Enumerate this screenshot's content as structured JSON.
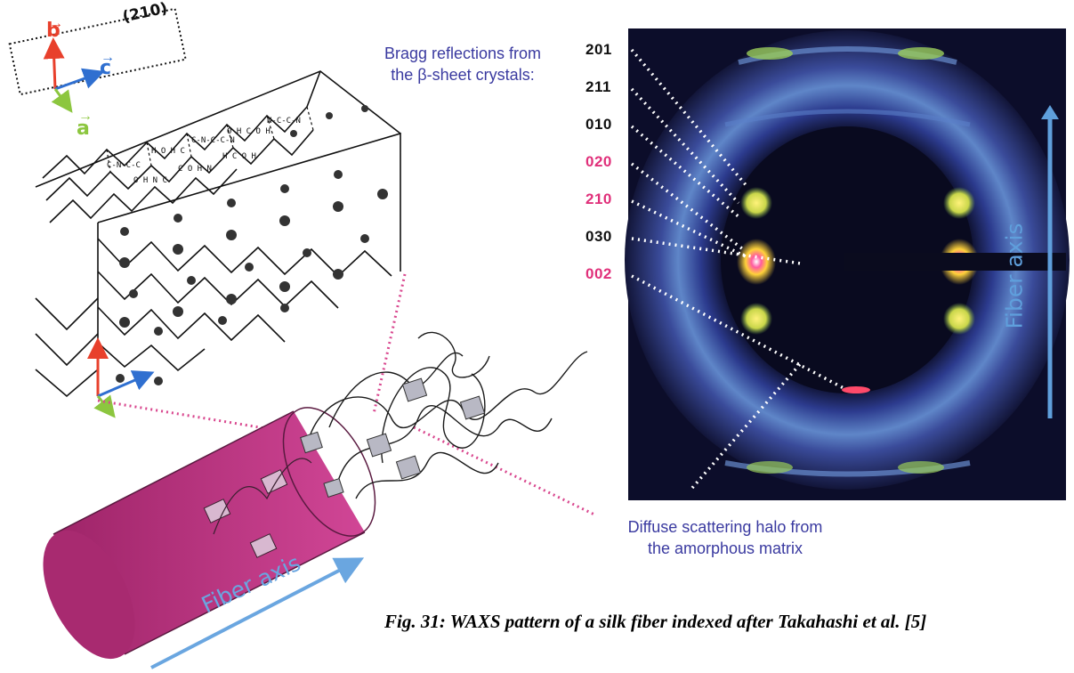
{
  "labels": {
    "bragg_line1": "Bragg reflections from",
    "bragg_line2": "the β-sheet crystals:",
    "halo_line1": "Diffuse scattering halo from",
    "halo_line2": "the amorphous matrix",
    "caption": "Fig. 31: WAXS pattern of a silk fiber indexed after Takahashi et al. [5]",
    "fiber_axis_left": "Fiber axis",
    "fiber_axis_right": "Fiber axis",
    "plane": "(210)",
    "vec_b": "b",
    "vec_c": "c",
    "vec_a": "a"
  },
  "reflections": [
    {
      "label": "201",
      "color": "#111111"
    },
    {
      "label": "211",
      "color": "#111111"
    },
    {
      "label": "010",
      "color": "#111111"
    },
    {
      "label": "020",
      "color": "#e0307a"
    },
    {
      "label": "210",
      "color": "#e0307a"
    },
    {
      "label": "030",
      "color": "#111111"
    },
    {
      "label": "002",
      "color": "#e0307a"
    }
  ],
  "colors": {
    "vector_b": "#e8402c",
    "vector_c": "#2f6fd0",
    "vector_a": "#8cc63f",
    "cylinder": "#c93a8c",
    "connector": "#d9488f",
    "waxs_background": "#0c0d2a",
    "fiber_axis_arrow": "#5f9fdc"
  }
}
